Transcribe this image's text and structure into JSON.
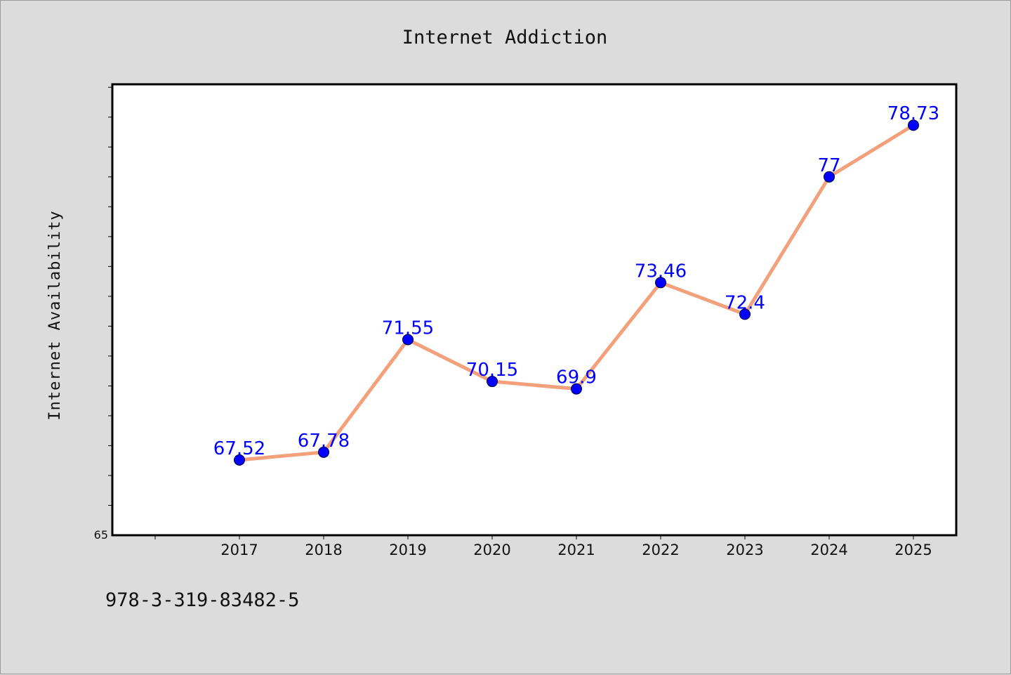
{
  "chart_data": {
    "type": "line",
    "title": "Internet Addiction",
    "xlabel": "",
    "ylabel": "Internet Availability",
    "x": [
      "2017",
      "2018",
      "2019",
      "2020",
      "2021",
      "2022",
      "2023",
      "2024",
      "2025"
    ],
    "series": [
      {
        "values": [
          67.52,
          67.78,
          71.55,
          70.15,
          69.9,
          73.46,
          72.4,
          77,
          78.73
        ],
        "labels": [
          "67.52",
          "67.78",
          "71.55",
          "70.15",
          "69.9",
          "73.46",
          "72.4",
          "77",
          "78.73"
        ],
        "line_color": "#f4a07a",
        "marker_color": "#0000ff",
        "label_color": "#0000ff"
      }
    ],
    "ylim": [
      65,
      80.1
    ],
    "yticks_labeled": [
      "65"
    ],
    "grid": false,
    "legend": "none"
  },
  "footer": {
    "text": "978-3-319-83482-5"
  },
  "colors": {
    "background": "#dcdcdc",
    "plot_background": "#ffffff",
    "axes": "#000000"
  }
}
